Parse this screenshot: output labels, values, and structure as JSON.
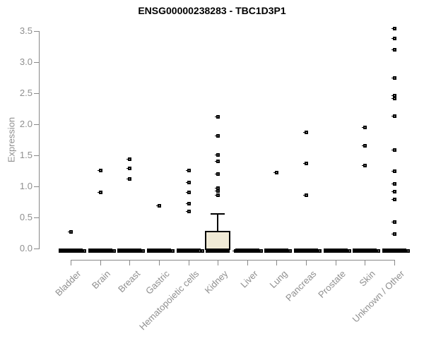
{
  "chart_data": {
    "type": "boxplot-scatter",
    "title": "ENSG00000238283 - TBC1D3P1",
    "ylabel": "Expression",
    "ylim": [
      0,
      3.5
    ],
    "yticks": [
      0.0,
      0.5,
      1.0,
      1.5,
      2.0,
      2.5,
      3.0,
      3.5
    ],
    "grid": false,
    "legend": "none",
    "categories": [
      "Bladder",
      "Brain",
      "Breast",
      "Gastric",
      "Hematopoietic cells",
      "Kidney",
      "Liver",
      "Lung",
      "Pancreas",
      "Prostate",
      "Skin",
      "Unknown / Other"
    ],
    "series": [
      {
        "name": "Bladder",
        "box": {
          "q1": 0,
          "median": 0,
          "q3": 0,
          "whisker_low": 0,
          "whisker_high": 0
        },
        "outliers": [
          0.27
        ],
        "zero_marker_offsets": [
          19
        ]
      },
      {
        "name": "Brain",
        "box": {
          "q1": 0,
          "median": 0,
          "q3": 0,
          "whisker_low": 0,
          "whisker_high": 0
        },
        "outliers": [
          1.26,
          0.91
        ],
        "zero_marker_offsets": [
          19
        ]
      },
      {
        "name": "Breast",
        "box": {
          "q1": 0,
          "median": 0,
          "q3": 0,
          "whisker_low": 0,
          "whisker_high": 0
        },
        "outliers": [
          1.44,
          1.29,
          1.13
        ],
        "zero_marker_offsets": [
          19
        ]
      },
      {
        "name": "Gastric",
        "box": {
          "q1": 0,
          "median": 0,
          "q3": 0,
          "whisker_low": 0,
          "whisker_high": 0
        },
        "outliers": [
          0.69
        ],
        "zero_marker_offsets": [
          19
        ]
      },
      {
        "name": "Hematopoietic cells",
        "box": {
          "q1": 0,
          "median": 0,
          "q3": 0,
          "whisker_low": 0,
          "whisker_high": 0
        },
        "outliers": [
          1.26,
          1.07,
          0.91,
          0.73,
          0.6
        ],
        "zero_marker_offsets": [
          19
        ]
      },
      {
        "name": "Kidney",
        "box": {
          "q1": 0,
          "median": 0,
          "q3": 0.28,
          "whisker_low": 0,
          "whisker_high": 0.56
        },
        "outliers": [
          2.13,
          1.82,
          1.51,
          1.41,
          1.21,
          0.98,
          0.93,
          0.86
        ],
        "zero_marker_offsets": [
          -26,
          25
        ]
      },
      {
        "name": "Liver",
        "box": {
          "q1": 0,
          "median": 0,
          "q3": 0,
          "whisker_low": 0,
          "whisker_high": 0
        },
        "outliers": [],
        "zero_marker_offsets": [
          19
        ]
      },
      {
        "name": "Lung",
        "box": {
          "q1": 0,
          "median": 0,
          "q3": 0,
          "whisker_low": 0,
          "whisker_high": 0
        },
        "outliers": [
          1.23
        ],
        "zero_marker_offsets": [
          19
        ]
      },
      {
        "name": "Pancreas",
        "box": {
          "q1": 0,
          "median": 0,
          "q3": 0,
          "whisker_low": 0,
          "whisker_high": 0
        },
        "outliers": [
          1.88,
          1.37,
          0.86
        ],
        "zero_marker_offsets": [
          19
        ]
      },
      {
        "name": "Prostate",
        "box": {
          "q1": 0,
          "median": 0,
          "q3": 0,
          "whisker_low": 0,
          "whisker_high": 0
        },
        "outliers": [],
        "zero_marker_offsets": [
          19
        ]
      },
      {
        "name": "Skin",
        "box": {
          "q1": 0,
          "median": 0,
          "q3": 0,
          "whisker_low": 0,
          "whisker_high": 0
        },
        "outliers": [
          1.96,
          1.66,
          1.34
        ],
        "zero_marker_offsets": [
          19
        ]
      },
      {
        "name": "Unknown / Other",
        "box": {
          "q1": 0,
          "median": 0,
          "q3": 0,
          "whisker_low": 0,
          "whisker_high": 0
        },
        "outliers": [
          3.54,
          3.39,
          3.21,
          2.75,
          2.47,
          2.42,
          2.14,
          1.59,
          1.25,
          1.05,
          0.92,
          0.8,
          0.43,
          0.24
        ],
        "zero_marker_offsets": [
          19
        ]
      }
    ],
    "colors": {
      "point": "#000000",
      "zero_bar": "#000000",
      "box_fill": "#f0ead6",
      "box_border": "#000000",
      "axis_line": "#888888",
      "axis_text": "#8f8f8f",
      "title_text": "#000000"
    }
  }
}
